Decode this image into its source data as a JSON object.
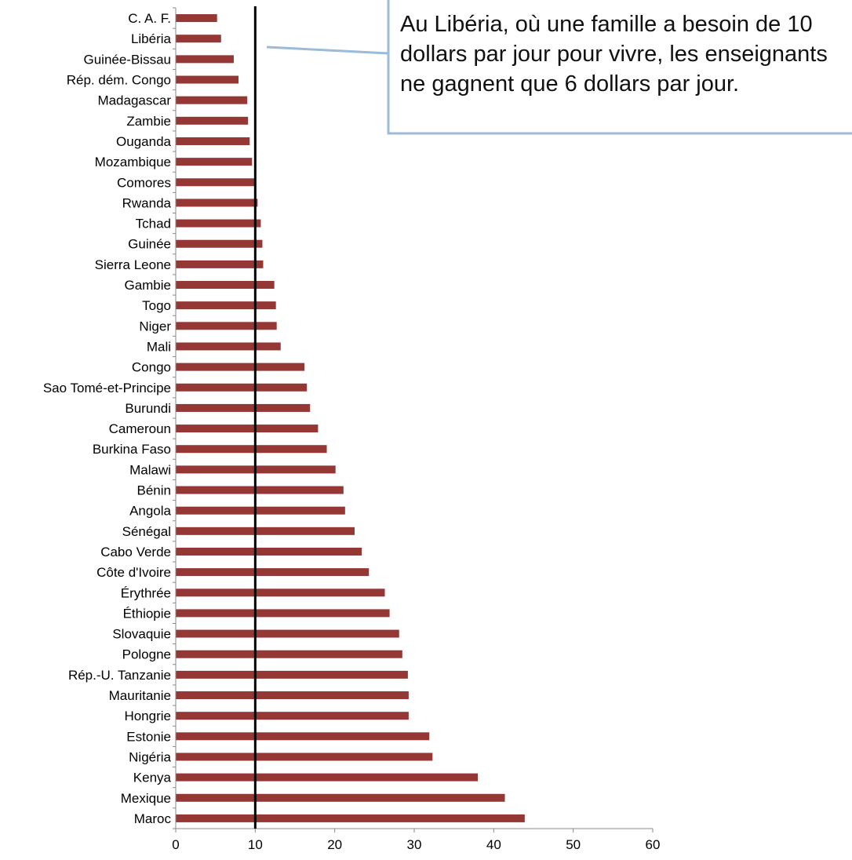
{
  "chart_data": {
    "type": "bar",
    "orientation": "horizontal",
    "categories": [
      "C. A. F.",
      "Libéria",
      "Guinée-Bissau",
      "Rép. dém. Congo",
      "Madagascar",
      "Zambie",
      "Ouganda",
      "Mozambique",
      "Comores",
      "Rwanda",
      "Tchad",
      "Guinée",
      "Sierra Leone",
      "Gambie",
      "Togo",
      "Niger",
      "Mali",
      "Congo",
      "Sao Tomé-et-Principe",
      "Burundi",
      "Cameroun",
      "Burkina Faso",
      "Malawi",
      "Bénin",
      "Angola",
      "Sénégal",
      "Cabo Verde",
      "Côte d'Ivoire",
      "Érythrée",
      "Éthiopie",
      "Slovaquie",
      "Pologne",
      "Rép.-U. Tanzanie",
      "Mauritanie",
      "Hongrie",
      "Estonie",
      "Nigéria",
      "Kenya",
      "Mexique",
      "Maroc"
    ],
    "values": [
      5.2,
      5.7,
      7.3,
      7.9,
      9.0,
      9.1,
      9.3,
      9.6,
      10.0,
      10.3,
      10.7,
      10.9,
      11.0,
      12.4,
      12.6,
      12.7,
      13.2,
      16.2,
      16.5,
      16.9,
      17.9,
      19.0,
      20.1,
      21.1,
      21.3,
      22.5,
      23.4,
      24.3,
      26.3,
      26.9,
      28.1,
      28.5,
      29.2,
      29.3,
      29.3,
      31.9,
      32.3,
      38.0,
      41.4,
      43.9
    ],
    "xlim": [
      0,
      60
    ],
    "xticks": [
      "0",
      "10",
      "20",
      "30",
      "40",
      "50",
      "60"
    ],
    "reference_line": {
      "value": 10
    },
    "bar_color": "#953735",
    "annotation": "Au Libéria, où une famille a besoin de 10 dollars par jour pour vivre, les enseignants ne gagnent que 6 dollars par jour.",
    "title": "",
    "xlabel": "",
    "ylabel": ""
  }
}
